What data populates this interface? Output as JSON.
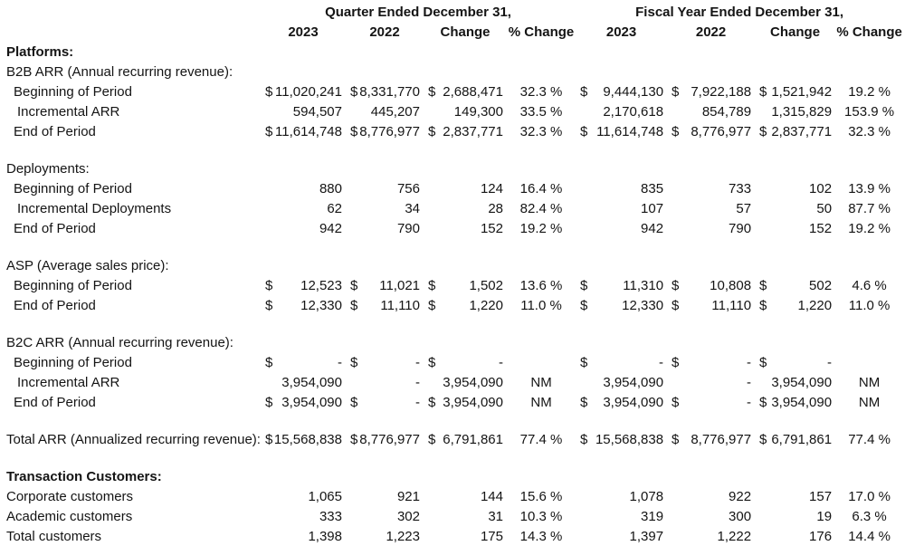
{
  "page": {
    "background_color": "#ffffff",
    "text_color": "#141414"
  },
  "table": {
    "group_headers": [
      {
        "label": "Quarter Ended December 31,"
      },
      {
        "label": "Fiscal Year Ended December 31,"
      }
    ],
    "column_headers": [
      "2023",
      "2022",
      "Change",
      "% Change",
      "2023",
      "2022",
      "Change",
      "% Change"
    ],
    "rows": [
      {
        "label": "Platforms:",
        "bold": true,
        "indent": 0,
        "cells": []
      },
      {
        "label": "B2B ARR (Annual recurring revenue):",
        "bold": false,
        "indent": 0,
        "cells": []
      },
      {
        "label": "Beginning of Period",
        "bold": false,
        "indent": 1,
        "cells": [
          {
            "d": "$",
            "v": "11,020,241"
          },
          {
            "d": "$",
            "v": "8,331,770"
          },
          {
            "d": "$",
            "v": "2,688,471"
          },
          {
            "v": "32.3 %"
          },
          {
            "d": "$",
            "v": "9,444,130"
          },
          {
            "d": "$",
            "v": "7,922,188"
          },
          {
            "d": "$",
            "v": "1,521,942"
          },
          {
            "v": "19.2 %"
          }
        ]
      },
      {
        "label": "Incremental ARR",
        "bold": false,
        "indent": 2,
        "cells": [
          {
            "v": "594,507"
          },
          {
            "v": "445,207"
          },
          {
            "v": "149,300"
          },
          {
            "v": "33.5 %"
          },
          {
            "v": "2,170,618"
          },
          {
            "v": "854,789"
          },
          {
            "v": "1,315,829"
          },
          {
            "v": "153.9 %"
          }
        ]
      },
      {
        "label": "End of Period",
        "bold": false,
        "indent": 1,
        "cells": [
          {
            "d": "$",
            "v": "11,614,748"
          },
          {
            "d": "$",
            "v": "8,776,977"
          },
          {
            "d": "$",
            "v": "2,837,771"
          },
          {
            "v": "32.3 %"
          },
          {
            "d": "$",
            "v": "11,614,748"
          },
          {
            "d": "$",
            "v": "8,776,977"
          },
          {
            "d": "$",
            "v": "2,837,771"
          },
          {
            "v": "32.3 %"
          }
        ]
      },
      {
        "spacer": true
      },
      {
        "label": "Deployments:",
        "bold": false,
        "indent": 0,
        "cells": []
      },
      {
        "label": "Beginning of Period",
        "bold": false,
        "indent": 1,
        "cells": [
          {
            "v": "880"
          },
          {
            "v": "756"
          },
          {
            "v": "124"
          },
          {
            "v": "16.4 %"
          },
          {
            "v": "835"
          },
          {
            "v": "733"
          },
          {
            "v": "102"
          },
          {
            "v": "13.9 %"
          }
        ]
      },
      {
        "label": "Incremental Deployments",
        "bold": false,
        "indent": 2,
        "cells": [
          {
            "v": "62"
          },
          {
            "v": "34"
          },
          {
            "v": "28"
          },
          {
            "v": "82.4 %"
          },
          {
            "v": "107"
          },
          {
            "v": "57"
          },
          {
            "v": "50"
          },
          {
            "v": "87.7 %"
          }
        ]
      },
      {
        "label": "End of Period",
        "bold": false,
        "indent": 1,
        "cells": [
          {
            "v": "942"
          },
          {
            "v": "790"
          },
          {
            "v": "152"
          },
          {
            "v": "19.2 %"
          },
          {
            "v": "942"
          },
          {
            "v": "790"
          },
          {
            "v": "152"
          },
          {
            "v": "19.2 %"
          }
        ]
      },
      {
        "spacer": true
      },
      {
        "label": "ASP (Average sales price):",
        "bold": false,
        "indent": 0,
        "cells": []
      },
      {
        "label": "Beginning of Period",
        "bold": false,
        "indent": 1,
        "cells": [
          {
            "d": "$",
            "v": "12,523"
          },
          {
            "d": "$",
            "v": "11,021"
          },
          {
            "d": "$",
            "v": "1,502"
          },
          {
            "v": "13.6 %"
          },
          {
            "d": "$",
            "v": "11,310"
          },
          {
            "d": "$",
            "v": "10,808"
          },
          {
            "d": "$",
            "v": "502"
          },
          {
            "v": "4.6 %"
          }
        ]
      },
      {
        "label": "End of Period",
        "bold": false,
        "indent": 1,
        "cells": [
          {
            "d": "$",
            "v": "12,330"
          },
          {
            "d": "$",
            "v": "11,110"
          },
          {
            "d": "$",
            "v": "1,220"
          },
          {
            "v": "11.0 %"
          },
          {
            "d": "$",
            "v": "12,330"
          },
          {
            "d": "$",
            "v": "11,110"
          },
          {
            "d": "$",
            "v": "1,220"
          },
          {
            "v": "11.0 %"
          }
        ]
      },
      {
        "spacer": true
      },
      {
        "label": "B2C ARR (Annual recurring revenue):",
        "bold": false,
        "indent": 0,
        "cells": []
      },
      {
        "label": "Beginning of Period",
        "bold": false,
        "indent": 1,
        "cells": [
          {
            "d": "$",
            "v": "-"
          },
          {
            "d": "$",
            "v": "-"
          },
          {
            "d": "$",
            "v": "-"
          },
          {
            "v": ""
          },
          {
            "d": "$",
            "v": "-"
          },
          {
            "d": "$",
            "v": "-"
          },
          {
            "d": "$",
            "v": "-"
          },
          {
            "v": ""
          }
        ]
      },
      {
        "label": "Incremental ARR",
        "bold": false,
        "indent": 2,
        "cells": [
          {
            "v": "3,954,090"
          },
          {
            "v": "-"
          },
          {
            "v": "3,954,090"
          },
          {
            "v": "NM"
          },
          {
            "v": "3,954,090"
          },
          {
            "v": "-"
          },
          {
            "v": "3,954,090"
          },
          {
            "v": "NM"
          }
        ]
      },
      {
        "label": "End of Period",
        "bold": false,
        "indent": 1,
        "cells": [
          {
            "d": "$",
            "v": "3,954,090"
          },
          {
            "d": "$",
            "v": "-"
          },
          {
            "d": "$",
            "v": "3,954,090"
          },
          {
            "v": "NM"
          },
          {
            "d": "$",
            "v": "3,954,090"
          },
          {
            "d": "$",
            "v": "-"
          },
          {
            "d": "$",
            "v": "3,954,090"
          },
          {
            "v": "NM"
          }
        ]
      },
      {
        "spacer": true
      },
      {
        "label": "Total ARR (Annualized recurring revenue):",
        "bold": false,
        "indent": 0,
        "cells": [
          {
            "d": "$",
            "v": "15,568,838"
          },
          {
            "d": "$",
            "v": "8,776,977"
          },
          {
            "d": "$",
            "v": "6,791,861"
          },
          {
            "v": "77.4 %"
          },
          {
            "d": "$",
            "v": "15,568,838"
          },
          {
            "d": "$",
            "v": "8,776,977"
          },
          {
            "d": "$",
            "v": "6,791,861"
          },
          {
            "v": "77.4 %"
          }
        ]
      },
      {
        "spacer": true
      },
      {
        "label": "Transaction Customers:",
        "bold": true,
        "indent": 0,
        "cells": []
      },
      {
        "label": "Corporate customers",
        "bold": false,
        "indent": 0,
        "cells": [
          {
            "v": "1,065"
          },
          {
            "v": "921"
          },
          {
            "v": "144"
          },
          {
            "v": "15.6 %"
          },
          {
            "v": "1,078"
          },
          {
            "v": "922"
          },
          {
            "v": "157"
          },
          {
            "v": "17.0 %"
          }
        ]
      },
      {
        "label": "Academic customers",
        "bold": false,
        "indent": 0,
        "cells": [
          {
            "v": "333"
          },
          {
            "v": "302"
          },
          {
            "v": "31"
          },
          {
            "v": "10.3 %"
          },
          {
            "v": "319"
          },
          {
            "v": "300"
          },
          {
            "v": "19"
          },
          {
            "v": "6.3 %"
          }
        ]
      },
      {
        "label": "Total customers",
        "bold": false,
        "indent": 0,
        "cells": [
          {
            "v": "1,398"
          },
          {
            "v": "1,223"
          },
          {
            "v": "175"
          },
          {
            "v": "14.3 %"
          },
          {
            "v": "1,397"
          },
          {
            "v": "1,222"
          },
          {
            "v": "176"
          },
          {
            "v": "14.4 %"
          }
        ]
      }
    ]
  }
}
